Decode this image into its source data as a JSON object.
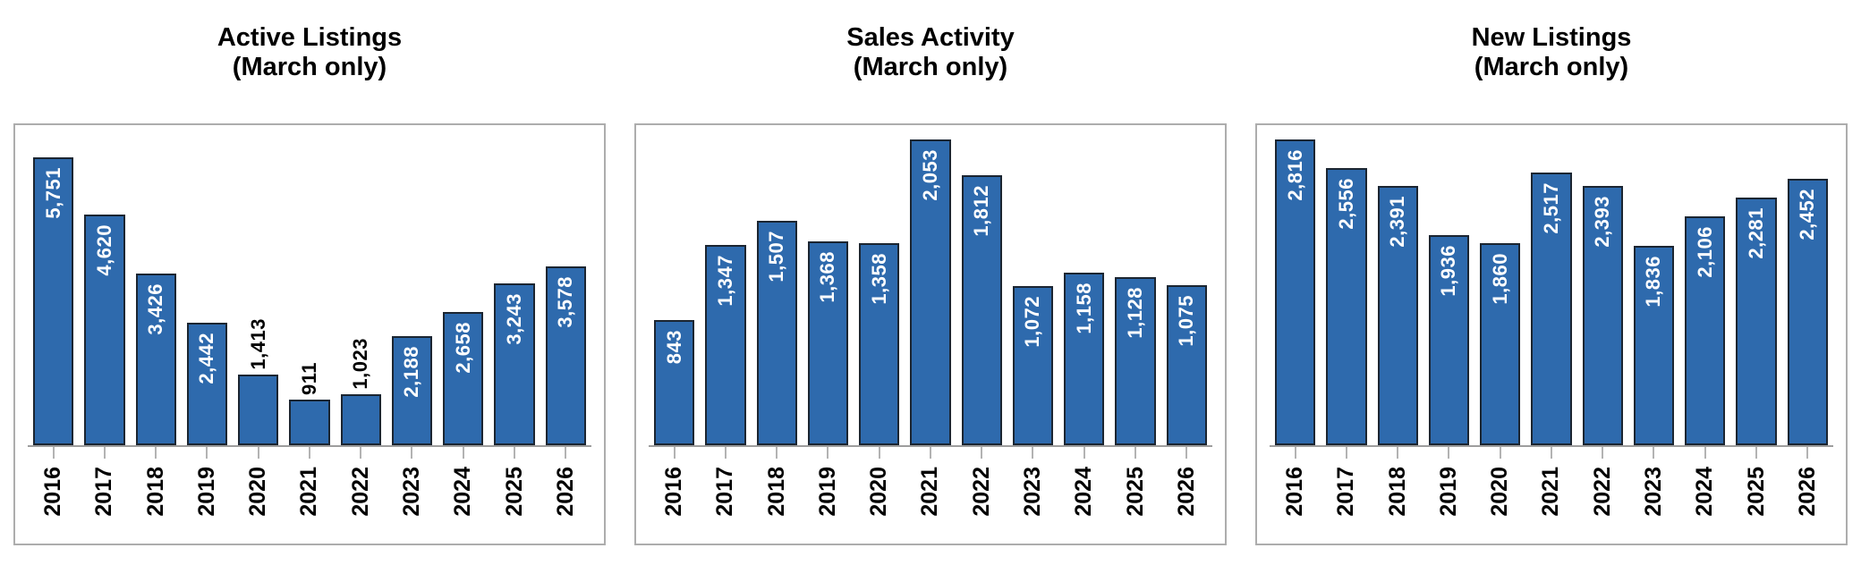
{
  "page": {
    "background": "#ffffff"
  },
  "colors": {
    "bar_fill": "#2e6aad",
    "bar_border": "#1b2531",
    "label_inside_bar": "#ffffff",
    "label_above_bar": "#000000",
    "panel_border": "#adadad",
    "axis_line": "#9d9d9d",
    "tick": "#b3b3b3",
    "title_text": "#000000",
    "year_label_text": "#000000"
  },
  "chart_data": [
    {
      "type": "bar",
      "title": "Active Listings",
      "subtitle": "(March only)",
      "categories": [
        "2016",
        "2017",
        "2018",
        "2019",
        "2020",
        "2021",
        "2022",
        "2023",
        "2024",
        "2025",
        "2026"
      ],
      "values": [
        5751,
        4620,
        3426,
        2442,
        1413,
        911,
        1023,
        2188,
        2658,
        3243,
        3578
      ],
      "labels": [
        "5,751",
        "4,620",
        "3,426",
        "2,442",
        "1,413",
        "911",
        "1,023",
        "2,188",
        "2,658",
        "3,243",
        "3,578"
      ],
      "outside_label_indices": [
        4,
        5,
        6
      ],
      "ylim": [
        0,
        6400
      ],
      "grid": false,
      "legend": "none",
      "value_label_rotation": -90,
      "category_label_rotation": -90
    },
    {
      "type": "bar",
      "title": "Sales Activity",
      "subtitle": "(March only)",
      "categories": [
        "2016",
        "2017",
        "2018",
        "2019",
        "2020",
        "2021",
        "2022",
        "2023",
        "2024",
        "2025",
        "2026"
      ],
      "values": [
        843,
        1347,
        1507,
        1368,
        1358,
        2053,
        1812,
        1072,
        1158,
        1128,
        1075
      ],
      "labels": [
        "843",
        "1,347",
        "1,507",
        "1,368",
        "1,358",
        "2,053",
        "1,812",
        "1,072",
        "1,158",
        "1,128",
        "1,075"
      ],
      "outside_label_indices": [],
      "ylim": [
        0,
        2150
      ],
      "grid": false,
      "legend": "none",
      "value_label_rotation": -90,
      "category_label_rotation": -90
    },
    {
      "type": "bar",
      "title": "New Listings",
      "subtitle": "(March only)",
      "categories": [
        "2016",
        "2017",
        "2018",
        "2019",
        "2020",
        "2021",
        "2022",
        "2023",
        "2024",
        "2025",
        "2026"
      ],
      "values": [
        2816,
        2556,
        2391,
        1936,
        1860,
        2517,
        2393,
        1836,
        2106,
        2281,
        2452
      ],
      "labels": [
        "2,816",
        "2,556",
        "2,391",
        "1,936",
        "1,860",
        "2,517",
        "2,393",
        "1,836",
        "2,106",
        "2,281",
        "2,452"
      ],
      "outside_label_indices": [],
      "ylim": [
        0,
        2950
      ],
      "grid": false,
      "legend": "none",
      "value_label_rotation": -90,
      "category_label_rotation": -90
    }
  ]
}
